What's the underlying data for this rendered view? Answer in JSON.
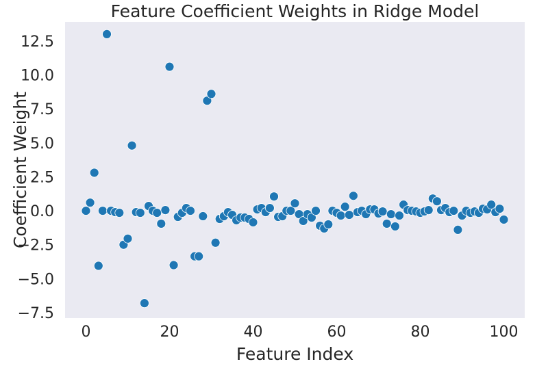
{
  "chart_data": {
    "type": "scatter",
    "title": "Feature Coefficient Weights in Ridge Model",
    "xlabel": "Feature Index",
    "ylabel": "Coefficient Weight",
    "xlim": [
      -5,
      105
    ],
    "ylim": [
      -7.9,
      13.9
    ],
    "xticks": [
      0,
      20,
      40,
      60,
      80,
      100
    ],
    "yticks": [
      -7.5,
      -5.0,
      -2.5,
      0.0,
      2.5,
      5.0,
      7.5,
      10.0,
      12.5
    ],
    "xtick_labels": [
      "0",
      "20",
      "40",
      "60",
      "80",
      "100"
    ],
    "ytick_labels": [
      "−7.5",
      "−5.0",
      "−2.5",
      "0.0",
      "2.5",
      "5.0",
      "7.5",
      "10.0",
      "12.5"
    ],
    "grid": false,
    "background_color": "#eaeaf2",
    "marker_color": "#1f77b4",
    "marker_edge_color": "#ffffff",
    "series": [
      {
        "x": [
          0,
          1,
          2,
          3,
          4,
          5,
          6,
          7,
          8,
          9,
          10,
          11,
          12,
          13,
          14,
          15,
          16,
          17,
          18,
          19,
          20,
          21,
          22,
          23,
          24,
          25,
          26,
          27,
          28,
          29,
          30,
          31,
          32,
          33,
          34,
          35,
          36,
          37,
          38,
          39,
          40,
          41,
          42,
          43,
          44,
          45,
          46,
          47,
          48,
          49,
          50,
          51,
          52,
          53,
          54,
          55,
          56,
          57,
          58,
          59,
          60,
          61,
          62,
          63,
          64,
          65,
          66,
          67,
          68,
          69,
          70,
          71,
          72,
          73,
          74,
          75,
          76,
          77,
          78,
          79,
          80,
          81,
          82,
          83,
          84,
          85,
          86,
          87,
          88,
          89,
          90,
          91,
          92,
          93,
          94,
          95,
          96,
          97,
          98,
          99,
          100
        ],
        "y": [
          0.0,
          0.6,
          2.8,
          -4.05,
          0.0,
          13.0,
          0.0,
          -0.1,
          -0.15,
          -2.5,
          -2.05,
          4.8,
          -0.1,
          -0.15,
          -6.8,
          0.35,
          0.0,
          -0.15,
          -0.95,
          0.05,
          10.6,
          -4.0,
          -0.45,
          -0.15,
          0.2,
          0.0,
          -3.35,
          -3.35,
          -0.4,
          8.1,
          8.6,
          -2.35,
          -0.6,
          -0.4,
          -0.1,
          -0.3,
          -0.7,
          -0.5,
          -0.5,
          -0.6,
          -0.85,
          0.1,
          0.2,
          -0.1,
          0.2,
          1.05,
          -0.45,
          -0.4,
          0.0,
          0.0,
          0.55,
          -0.25,
          -0.75,
          -0.25,
          -0.5,
          0.0,
          -1.1,
          -1.3,
          -1.0,
          0.0,
          -0.15,
          -0.35,
          0.3,
          -0.3,
          1.1,
          -0.1,
          0.0,
          -0.25,
          0.1,
          0.1,
          -0.2,
          -0.05,
          -0.95,
          -0.25,
          -1.15,
          -0.35,
          0.45,
          0.05,
          0.0,
          -0.05,
          -0.15,
          -0.05,
          0.05,
          0.9,
          0.7,
          0.05,
          0.2,
          -0.1,
          0.0,
          -1.4,
          -0.35,
          0.0,
          -0.15,
          -0.05,
          -0.15,
          0.15,
          0.1,
          0.45,
          -0.1,
          0.15,
          -0.65
        ]
      }
    ]
  }
}
